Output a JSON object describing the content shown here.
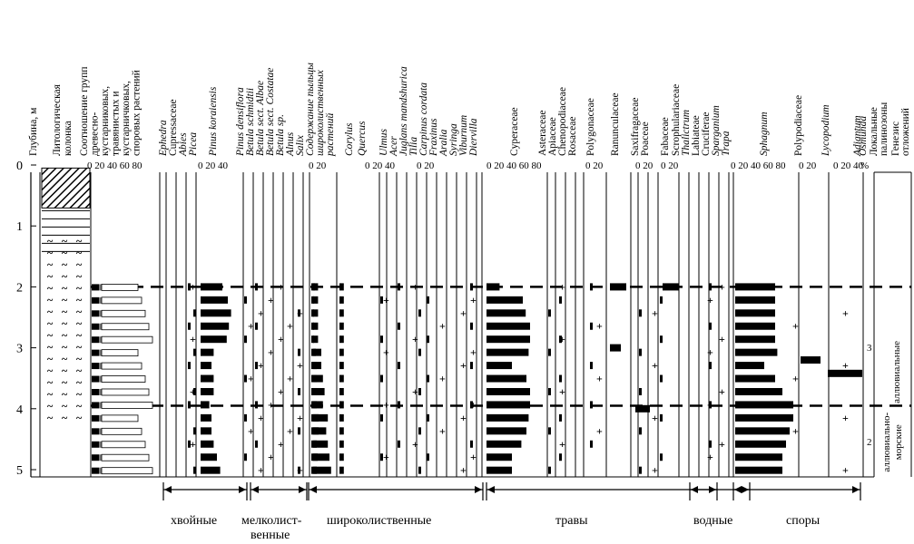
{
  "chart_data": {
    "type": "pollen-diagram",
    "headers": {
      "depth": "Глубина, м",
      "litho": "Литологическая колонка",
      "groups_ratio": "Соотношение групп древесно-кустарниковых, травянистых и кустарничковых, споровых растений",
      "woody_content": "Содержание пыльцы широколиственных растений",
      "zones": "Локальные палинозоны",
      "genesis": "Генезис отложений",
      "percent": "%"
    },
    "depth_ticks": [
      "0",
      "1",
      "2",
      "3",
      "4",
      "5"
    ],
    "zone_labels": [
      "3",
      "2"
    ],
    "genesis_labels": [
      "аллювиальные",
      "аллювиально-морские"
    ],
    "taxa": [
      {
        "name": "Ephedra",
        "italic": true,
        "scale": "",
        "values": []
      },
      {
        "name": "Cupressaceae",
        "italic": false,
        "scale": "",
        "values": []
      },
      {
        "name": "Abies",
        "italic": true,
        "scale": "",
        "values": []
      },
      {
        "name": "Picea",
        "italic": true,
        "scale": "",
        "values": []
      },
      {
        "name": "Pinus koraiensis",
        "italic": true,
        "scale": "0 20 40",
        "values": [
          20,
          25,
          28,
          26,
          24,
          12,
          10,
          12,
          12,
          8,
          10,
          10,
          12,
          15,
          18
        ]
      },
      {
        "name": "Pinus densiflora",
        "italic": true,
        "scale": "",
        "values": []
      },
      {
        "name": "Betula schmidtii",
        "italic": true,
        "scale": "",
        "values": []
      },
      {
        "name": "Betula sect. Albae",
        "italic": true,
        "scale": "",
        "values": []
      },
      {
        "name": "Betula sect. Costatae",
        "italic": true,
        "scale": "",
        "values": []
      },
      {
        "name": "Betula sp.",
        "italic": true,
        "scale": "",
        "values": []
      },
      {
        "name": "Alnus",
        "italic": true,
        "scale": "",
        "values": []
      },
      {
        "name": "Salix",
        "italic": true,
        "scale": "",
        "values": []
      },
      {
        "name": "Содержание пыльцы широколиственных растений",
        "italic": false,
        "scale": "0 20",
        "values": [
          4,
          3,
          3,
          3,
          3,
          5,
          6,
          6,
          6,
          6,
          8,
          8,
          6,
          7,
          6
        ]
      },
      {
        "name": "Corylus",
        "italic": true,
        "scale": "",
        "values": [
          6,
          6,
          6,
          6,
          6,
          10,
          10,
          12,
          14,
          12,
          18,
          16,
          18,
          20,
          22
        ]
      },
      {
        "name": "Quercus",
        "italic": true,
        "scale": "0 20 40",
        "values": [
          4,
          4,
          4,
          4,
          4,
          4,
          4,
          4,
          4,
          4,
          4,
          4,
          4,
          4,
          4
        ]
      },
      {
        "name": "Ulmus",
        "italic": true,
        "scale": "",
        "values": []
      },
      {
        "name": "Acer",
        "italic": true,
        "scale": "",
        "values": []
      },
      {
        "name": "Juglans mandshurica",
        "italic": true,
        "scale": "",
        "values": []
      },
      {
        "name": "Tilia",
        "italic": true,
        "scale": "",
        "values": []
      },
      {
        "name": "Carpinus cordata",
        "italic": true,
        "scale": "0 20",
        "values": []
      },
      {
        "name": "Fraxinus",
        "italic": true,
        "scale": "",
        "values": []
      },
      {
        "name": "Aralia",
        "italic": true,
        "scale": "",
        "values": []
      },
      {
        "name": "Syringa",
        "italic": true,
        "scale": "",
        "values": []
      },
      {
        "name": "Viburnum",
        "italic": true,
        "scale": "",
        "values": []
      },
      {
        "name": "Diervilla",
        "italic": true,
        "scale": "",
        "values": []
      },
      {
        "name": "Cyperaceae",
        "italic": false,
        "scale": "0 20 40 60 80",
        "values": [
          18,
          50,
          54,
          60,
          60,
          58,
          35,
          55,
          60,
          60,
          58,
          55,
          48,
          35,
          35
        ]
      },
      {
        "name": "Asteraceae",
        "italic": false,
        "scale": "",
        "values": []
      },
      {
        "name": "Apiaceae",
        "italic": false,
        "scale": "",
        "values": []
      },
      {
        "name": "Chenopodiaceae",
        "italic": false,
        "scale": "",
        "values": []
      },
      {
        "name": "Rosaceae",
        "italic": false,
        "scale": "",
        "values": []
      },
      {
        "name": "Polygonaceae",
        "italic": false,
        "scale": "0 20",
        "values": []
      },
      {
        "name": "Ranunculaceae",
        "italic": false,
        "scale": "",
        "values": []
      },
      {
        "name": "Saxifragaceae",
        "italic": false,
        "scale": "",
        "values": []
      },
      {
        "name": "Poaceae",
        "italic": false,
        "scale": "0 20",
        "values": []
      },
      {
        "name": "Fabaceae",
        "italic": false,
        "scale": "",
        "values": []
      },
      {
        "name": "Scrophulariaceae",
        "italic": false,
        "scale": "0 20",
        "values": []
      },
      {
        "name": "Thalictrum",
        "italic": true,
        "scale": "",
        "values": []
      },
      {
        "name": "Labiateae",
        "italic": false,
        "scale": "",
        "values": []
      },
      {
        "name": "Cruciferae",
        "italic": false,
        "scale": "",
        "values": []
      },
      {
        "name": "Sparganium",
        "italic": true,
        "scale": "",
        "values": []
      },
      {
        "name": "Trapa",
        "italic": true,
        "scale": "",
        "values": []
      },
      {
        "name": "Sphagnum",
        "italic": true,
        "scale": "",
        "values": []
      },
      {
        "name": "Polypodiaceae",
        "italic": false,
        "scale": "0 20 40 60 80",
        "values": [
          55,
          55,
          55,
          55,
          55,
          58,
          40,
          55,
          65,
          80,
          80,
          75,
          70,
          65,
          65
        ]
      },
      {
        "name": "Lycopodium",
        "italic": true,
        "scale": "",
        "values": []
      },
      {
        "name": "Osmunda",
        "italic": true,
        "scale": "0 20",
        "values": []
      },
      {
        "name": "Adiantum",
        "italic": true,
        "scale": "0 20 40",
        "values": []
      }
    ],
    "groups": [
      {
        "label": "хвойные"
      },
      {
        "label": "мелколист-"
      },
      {
        "label": "венные"
      },
      {
        "label": "широколиственные"
      },
      {
        "label": "травы"
      },
      {
        "label": "водные"
      },
      {
        "label": "споры"
      }
    ]
  }
}
